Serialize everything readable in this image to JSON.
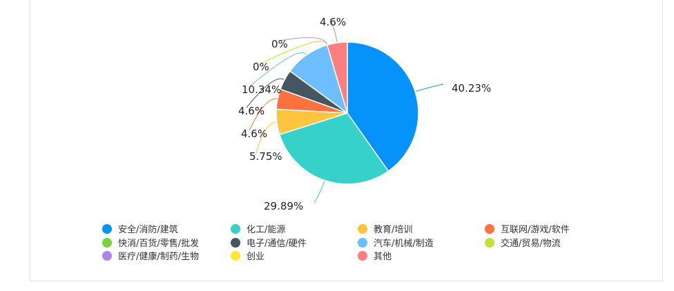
{
  "chart_data": {
    "type": "pie",
    "title": "",
    "series": [
      {
        "name": "安全/消防/建筑",
        "value": 40.23,
        "label": "40.23%",
        "color": "#0593fb"
      },
      {
        "name": "化工/能源",
        "value": 29.89,
        "label": "29.89%",
        "color": "#36d1c9"
      },
      {
        "name": "教育/培训",
        "value": 5.75,
        "label": "5.75%",
        "color": "#fdc43d"
      },
      {
        "name": "互联网/游戏/软件",
        "value": 4.6,
        "label": "4.6%",
        "color": "#fc7140"
      },
      {
        "name": "电子/通信/硬件",
        "value": 4.6,
        "label": "4.6%",
        "color": "#455660"
      },
      {
        "name": "汽车/机械/制造",
        "value": 10.34,
        "label": "10.34%",
        "color": "#6cbffc"
      },
      {
        "name": "交通/贸易/物流",
        "value": 0,
        "label": "0%",
        "color": "#bde538"
      },
      {
        "name": "医疗/健康/制药/生物",
        "value": 0,
        "label": "0%",
        "color": "#ad84ec"
      },
      {
        "name": "创业",
        "value": 0,
        "label": "",
        "color": "#fde735"
      },
      {
        "name": "其他",
        "value": 4.6,
        "label": "4.6%",
        "color": "#fd7e7e"
      }
    ],
    "legend_order": [
      "安全/消防/建筑",
      "化工/能源",
      "教育/培训",
      "互联网/游戏/软件",
      "快消/百货/零售/批发",
      "电子/通信/硬件",
      "汽车/机械/制造",
      "交通/贸易/物流",
      "医疗/健康/制药/生物",
      "创业",
      "其他"
    ],
    "legend_colors": {
      "快消/百货/零售/批发": "#7bd141"
    },
    "legend_placement": "bottom"
  }
}
